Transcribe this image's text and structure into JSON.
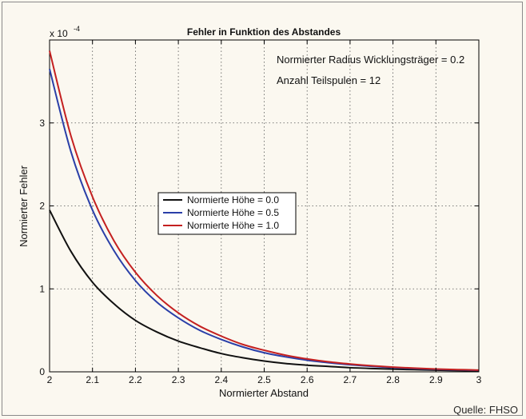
{
  "chart_data": {
    "type": "line",
    "title": "Fehler in Funktion des Abstandes",
    "xlabel": "Normierter Abstand",
    "ylabel": "Normierter Fehler",
    "y_exponent_label": "x 10",
    "y_exponent": "-4",
    "xlim": [
      2,
      3
    ],
    "ylim": [
      0,
      4
    ],
    "y_scale_factor": 0.0001,
    "x_ticks": [
      2,
      2.1,
      2.2,
      2.3,
      2.4,
      2.5,
      2.6,
      2.7,
      2.8,
      2.9,
      3
    ],
    "x_tick_labels": [
      "2",
      "2.1",
      "2.2",
      "2.3",
      "2.4",
      "2.5",
      "2.6",
      "2.7",
      "2.8",
      "2.9",
      "3"
    ],
    "y_ticks": [
      0,
      1,
      2,
      3
    ],
    "y_tick_labels": [
      "0",
      "1",
      "2",
      "3"
    ],
    "grid": true,
    "legend_position": "center-left",
    "annotations": [
      "Normierter Radius Wicklungsträger  = 0.2",
      "Anzahl Teilspulen = 12"
    ],
    "x": [
      2.0,
      2.05,
      2.1,
      2.15,
      2.2,
      2.25,
      2.3,
      2.35,
      2.4,
      2.45,
      2.5,
      2.55,
      2.6,
      2.65,
      2.7,
      2.75,
      2.8,
      2.85,
      2.9,
      2.95,
      3.0
    ],
    "series": [
      {
        "name": "Normierte Höhe = 0.0",
        "color": "#111111",
        "values": [
          1.95,
          1.45,
          1.08,
          0.82,
          0.62,
          0.48,
          0.37,
          0.29,
          0.22,
          0.17,
          0.13,
          0.1,
          0.08,
          0.065,
          0.05,
          0.04,
          0.032,
          0.026,
          0.02,
          0.016,
          0.012
        ]
      },
      {
        "name": "Normierte Höhe = 0.5",
        "color": "#2a3fa8",
        "values": [
          3.65,
          2.65,
          1.95,
          1.46,
          1.1,
          0.84,
          0.65,
          0.5,
          0.39,
          0.3,
          0.23,
          0.18,
          0.14,
          0.11,
          0.085,
          0.066,
          0.05,
          0.04,
          0.03,
          0.024,
          0.018
        ]
      },
      {
        "name": "Normierte Höhe = 1.0",
        "color": "#c42020",
        "values": [
          3.87,
          2.84,
          2.11,
          1.58,
          1.2,
          0.92,
          0.71,
          0.55,
          0.43,
          0.33,
          0.26,
          0.2,
          0.155,
          0.12,
          0.094,
          0.073,
          0.057,
          0.044,
          0.034,
          0.027,
          0.021
        ]
      }
    ]
  },
  "source_note": "Quelle: FHSO"
}
